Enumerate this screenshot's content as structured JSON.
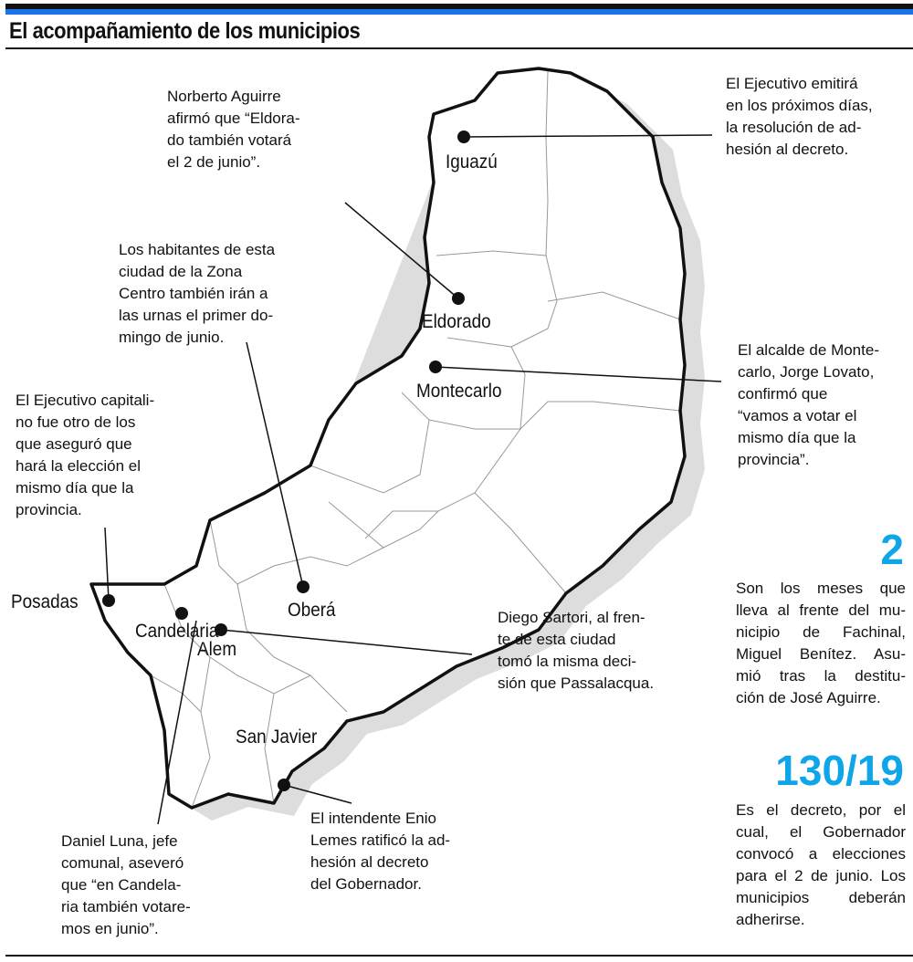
{
  "header": {
    "title": "El acompañamiento de los municipios"
  },
  "colors": {
    "accent": "#0ea5e9",
    "topbar": "#1a73e8",
    "outline": "#111111",
    "shadow": "#dddddd"
  },
  "cities": {
    "iguazu": "Iguazú",
    "eldorado": "Eldorado",
    "montecarlo": "Montecarlo",
    "obera": "Oberá",
    "posadas": "Posadas",
    "candelaria": "Candelaria",
    "alem": "Alem",
    "san_javier": "San Javier"
  },
  "notes": {
    "iguazu": [
      "El Ejecutivo emitirá",
      "en los próximos días,",
      "la resolución de ad-",
      "hesión al decreto."
    ],
    "eldorado": [
      "Norberto Aguirre",
      "afirmó que “Eldora-",
      "do también votará",
      "el 2 de junio”."
    ],
    "obera": [
      "Los habitantes de esta",
      "ciudad de la Zona",
      "Centro también irán a",
      "las urnas el primer do-",
      "mingo de junio."
    ],
    "posadas": [
      "El Ejecutivo capitali-",
      "no fue otro de los",
      "que aseguró que",
      "hará la elección el",
      "mismo día que la",
      "provincia."
    ],
    "montecarlo": [
      "El alcalde de Monte-",
      "carlo, Jorge Lovato,",
      "confirmó que",
      "“vamos a votar el",
      "mismo día que la",
      "provincia”."
    ],
    "alem": [
      "Diego Sartori, al fren-",
      "te de esta ciudad",
      "tomó la misma deci-",
      "sión que Passalacqua."
    ],
    "san_javier": [
      "El intendente Enio",
      "Lemes ratificó la ad-",
      "hesión al decreto",
      "del Gobernador."
    ],
    "candelaria": [
      "Daniel Luna, jefe",
      "comunal, aseveró",
      "que “en Candela-",
      "ria también votare-",
      "mos en junio”."
    ]
  },
  "stats": [
    {
      "value": "2",
      "text": [
        "Son los meses que",
        "lleva al frente del mu-",
        "nicipio de Fachinal,",
        "Miguel Benítez. Asu-",
        "mió tras la destitu-",
        "ción de José Aguirre."
      ]
    },
    {
      "value": "130/19",
      "text": [
        "Es el decreto, por el",
        "cual, el Gobernador",
        "convocó a elecciones",
        "para el 2 de junio. Los",
        "municipios deberán",
        "adherirse."
      ]
    }
  ]
}
